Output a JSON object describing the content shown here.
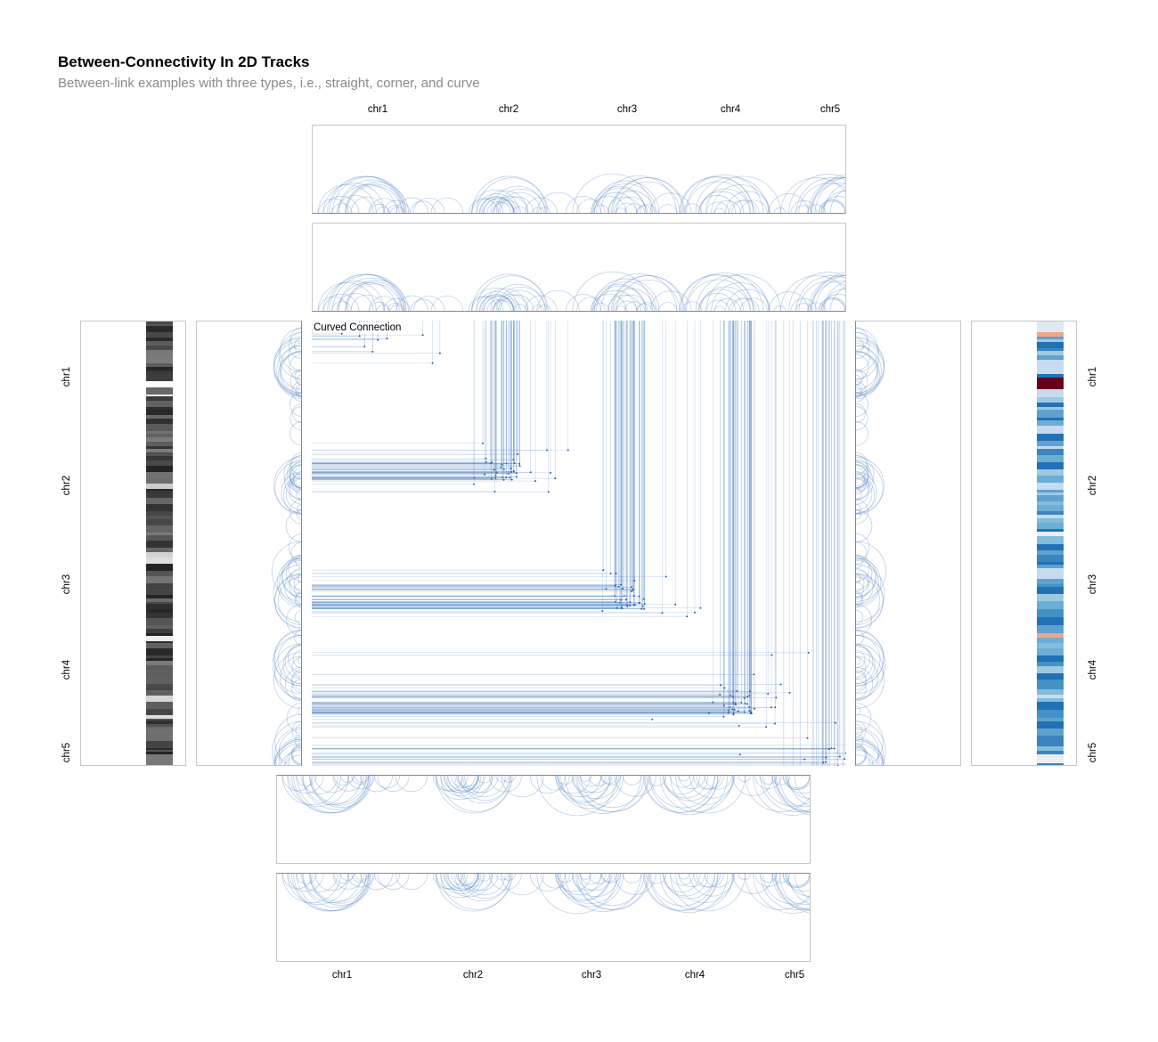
{
  "title": "Between-Connectivity In 2D Tracks",
  "subtitle": "Between-link examples with three types, i.e., straight, corner, and curve",
  "center_track_title": "Curved Connection",
  "chromosomes": [
    "chr1",
    "chr2",
    "chr3",
    "chr4",
    "chr5"
  ],
  "colors": {
    "link": "#4a7fc1",
    "panel_border": "#c7c7c7",
    "heat_low": "#f7fbff",
    "heat_high": "#08306b",
    "heat_extreme": "#67001f"
  },
  "chart_data": {
    "type": "heatmap",
    "description_tracks": [
      "arc links",
      "between-links matrix",
      "grayscale bars",
      "diverging color bars"
    ],
    "axis_ticks": [
      "chr1",
      "chr2",
      "chr3",
      "chr4",
      "chr5"
    ]
  }
}
